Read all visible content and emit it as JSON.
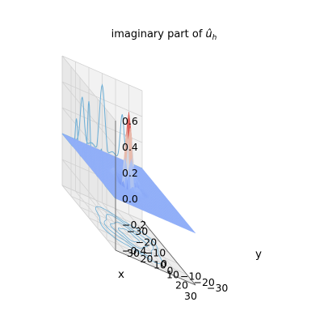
{
  "chart_data": {
    "type": "surface3d",
    "title": "imaginary part of",
    "title_math": "û",
    "title_math_sub": "h",
    "xlabel": "x",
    "ylabel": "y",
    "zlabel": "",
    "x_ticks": [
      -30,
      -20,
      -10,
      0,
      10,
      20,
      30
    ],
    "y_ticks": [
      -30,
      -20,
      -10,
      0,
      10,
      20,
      30
    ],
    "z_ticks": [
      -0.4,
      -0.2,
      0.0,
      0.2,
      0.4,
      0.6
    ],
    "x_tick_labels": [
      "−30",
      "−20",
      "−10",
      "0",
      "10",
      "20",
      "30"
    ],
    "y_tick_labels": [
      "−30",
      "−20",
      "−10",
      "0",
      "10",
      "20",
      "30"
    ],
    "z_tick_labels": [
      "−0.4",
      "−0.2",
      "0.0",
      "0.2",
      "0.4",
      "0.6"
    ],
    "xlim": [
      -30,
      30
    ],
    "ylim": [
      -30,
      30
    ],
    "zlim": [
      -0.4,
      0.6
    ],
    "peak": {
      "x": 0,
      "y": 0,
      "z": 0.55
    },
    "colormap": "coolwarm",
    "grid": true,
    "projections": [
      "x-wall",
      "y-wall",
      "z-floor contours"
    ],
    "colors": {
      "surface_low": "#6a8bef",
      "surface_high": "#b40426",
      "wall_curve": "#6baed6",
      "pane": "#f2f2f2"
    }
  }
}
